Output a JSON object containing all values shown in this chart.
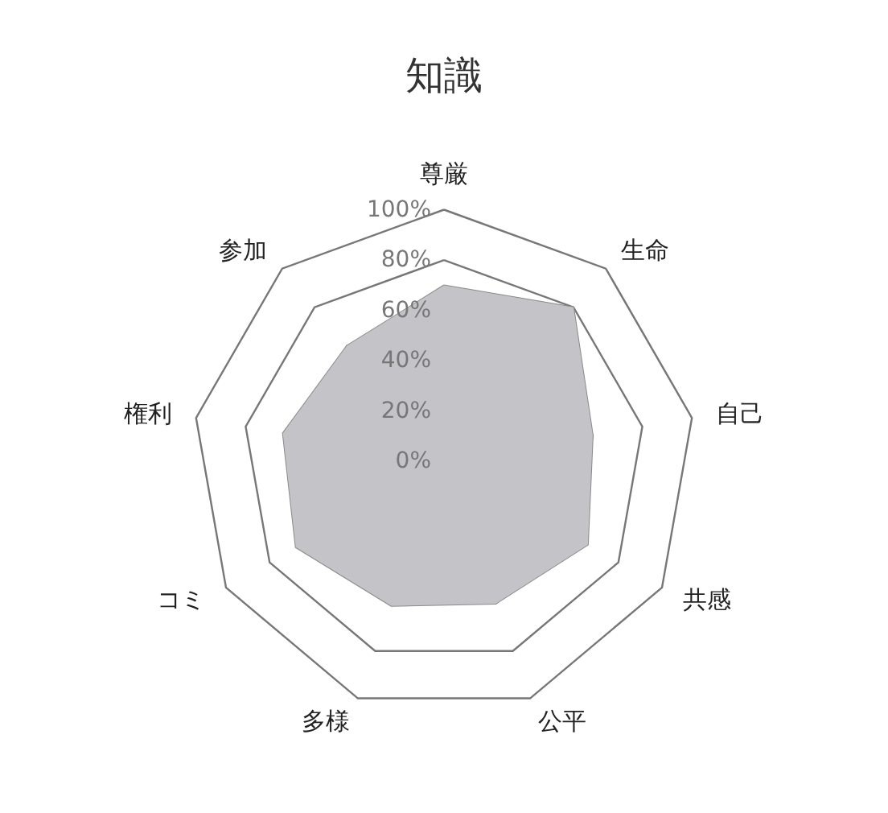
{
  "chart_data": {
    "type": "radar",
    "title": "知識",
    "categories": [
      "尊厳",
      "生命",
      "自己",
      "共感",
      "公平",
      "多様",
      "コミ",
      "権利",
      "参加"
    ],
    "series": [
      {
        "color": "#c4c4c8",
        "values": [
          70,
          80,
          60,
          66,
          60,
          61,
          68,
          65,
          60
        ]
      }
    ],
    "ylim": [
      0,
      100
    ],
    "yticks": [
      {
        "value": 0,
        "label": "0%"
      },
      {
        "value": 20,
        "label": "20%"
      },
      {
        "value": 40,
        "label": "40%"
      },
      {
        "value": 60,
        "label": "60%"
      },
      {
        "value": 80,
        "label": "80%"
      },
      {
        "value": 100,
        "label": "100%"
      }
    ],
    "grid": true,
    "marker": "none"
  }
}
